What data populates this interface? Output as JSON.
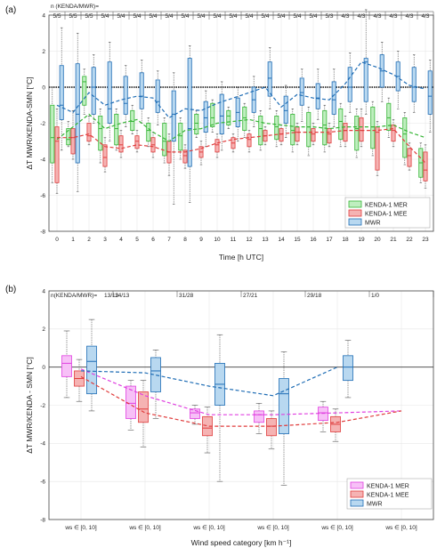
{
  "chart_data": [
    {
      "type": "box",
      "panel_label": "(a)",
      "xlabel": "Time [h UTC]",
      "ylabel": "ΔT MWR/KENDA-SMN [°C]",
      "ylim": [
        -8,
        4
      ],
      "yticks": [
        -8,
        -6,
        -4,
        -2,
        0,
        2,
        4
      ],
      "grid": true,
      "legend_position": "lower-right",
      "n_header_label": "n (KENDA/MWR)=",
      "categories": [
        "0",
        "1",
        "2",
        "3",
        "4",
        "5",
        "6",
        "7",
        "8",
        "9",
        "10",
        "11",
        "12",
        "13",
        "14",
        "15",
        "16",
        "17",
        "18",
        "19",
        "20",
        "21",
        "22",
        "23"
      ],
      "n_counts": [
        "5/5",
        "5/5",
        "5/5",
        "5/4",
        "5/4",
        "5/4",
        "5/4",
        "5/4",
        "5/4",
        "5/4",
        "5/4",
        "5/4",
        "5/4",
        "5/4",
        "5/4",
        "5/4",
        "5/4",
        "5/3",
        "4/3",
        "4/3",
        "4/3",
        "4/3",
        "4/3",
        "4/3"
      ],
      "series": [
        {
          "name": "KENDA-1 MER",
          "color": "#35b535",
          "fill": "#bfeebf",
          "median": [
            -2.8,
            -2.9,
            0.3,
            -2.3,
            -2.3,
            -1.9,
            -2.4,
            -3.0,
            -2.7,
            -2.0,
            -1.7,
            -1.6,
            -1.7,
            -2.3,
            -2.2,
            -2.4,
            -2.2,
            -2.1,
            -1.9,
            -2.3,
            -2.2,
            -1.7,
            -2.6,
            -4.2
          ],
          "q1": [
            -4.2,
            -3.2,
            -1.0,
            -3.5,
            -3.2,
            -2.4,
            -3.0,
            -3.8,
            -3.5,
            -2.6,
            -2.2,
            -2.1,
            -2.4,
            -3.2,
            -2.9,
            -3.2,
            -3.3,
            -3.2,
            -2.9,
            -3.5,
            -3.4,
            -2.4,
            -3.9,
            -5.0
          ],
          "q3": [
            -1.0,
            -2.3,
            0.6,
            -1.6,
            -1.5,
            -1.3,
            -2.0,
            -2.0,
            -2.0,
            -1.5,
            -0.9,
            -1.3,
            -1.1,
            -1.6,
            -1.6,
            -1.5,
            -1.4,
            -1.3,
            -1.2,
            -1.6,
            -1.1,
            -0.9,
            -1.7,
            -3.4
          ],
          "whislo": [
            -5.3,
            -3.3,
            -1.5,
            -4.2,
            -3.5,
            -2.6,
            -3.3,
            -4.2,
            -4.0,
            -2.8,
            -2.5,
            -2.3,
            -2.8,
            -3.5,
            -3.3,
            -3.6,
            -3.8,
            -3.6,
            -3.3,
            -3.9,
            -3.8,
            -2.8,
            -4.3,
            -5.3
          ],
          "whishi": [
            0.0,
            -1.9,
            1.0,
            -1.2,
            -1.2,
            -1.0,
            -1.7,
            -1.7,
            -1.7,
            -1.3,
            -0.7,
            -1.1,
            -0.9,
            -1.3,
            -1.3,
            -1.2,
            -1.1,
            -1.0,
            -0.9,
            -1.2,
            -0.8,
            -0.6,
            -1.4,
            -3.1
          ]
        },
        {
          "name": "KENDA-1 MEE",
          "color": "#e03c3c",
          "fill": "#f5b3b3",
          "median": [
            -3.0,
            -2.8,
            -2.7,
            -3.9,
            -3.2,
            -3.0,
            -3.2,
            -3.6,
            -3.8,
            -3.6,
            -3.2,
            -3.1,
            -2.9,
            -2.7,
            -2.6,
            -2.5,
            -2.6,
            -2.6,
            -2.4,
            -2.4,
            -2.5,
            -2.4,
            -3.8,
            -4.6
          ],
          "q1": [
            -5.3,
            -3.7,
            -3.0,
            -4.4,
            -3.6,
            -3.4,
            -3.6,
            -4.2,
            -4.2,
            -3.9,
            -3.6,
            -3.4,
            -3.3,
            -3.0,
            -3.0,
            -3.0,
            -3.0,
            -3.1,
            -3.0,
            -3.0,
            -4.6,
            -3.0,
            -4.4,
            -5.2
          ],
          "q3": [
            -2.2,
            -2.3,
            -2.0,
            -3.2,
            -2.7,
            -2.7,
            -2.8,
            -3.0,
            -3.5,
            -3.3,
            -2.9,
            -2.8,
            -2.6,
            -2.4,
            -2.3,
            -2.2,
            -2.3,
            -2.3,
            -2.0,
            -1.7,
            -2.2,
            -2.1,
            -3.4,
            -3.6
          ],
          "whislo": [
            -5.9,
            -4.0,
            -3.2,
            -4.7,
            -3.9,
            -3.6,
            -3.9,
            -4.9,
            -4.5,
            -4.3,
            -3.9,
            -3.6,
            -3.6,
            -3.2,
            -3.2,
            -3.2,
            -3.2,
            -3.3,
            -3.3,
            -3.3,
            -4.9,
            -3.3,
            -4.6,
            -5.6
          ],
          "whishi": [
            -1.2,
            -1.3,
            -1.6,
            -2.8,
            -2.4,
            -2.4,
            -2.5,
            -2.6,
            -3.2,
            -3.0,
            -2.6,
            -2.6,
            -2.4,
            -2.2,
            -2.1,
            -2.0,
            -2.0,
            -2.0,
            -1.6,
            -1.2,
            -1.9,
            -1.8,
            -3.1,
            -3.2
          ]
        },
        {
          "name": "MWR",
          "color": "#1f6db5",
          "fill": "#b8d8f0",
          "median": [
            -1.0,
            -1.5,
            0.0,
            -1.2,
            -0.9,
            -0.5,
            -0.8,
            -1.5,
            -2.3,
            -1.7,
            -1.6,
            -1.4,
            -0.7,
            0.5,
            -1.3,
            -0.3,
            -0.6,
            -0.7,
            0.0,
            1.4,
            0.9,
            0.6,
            0.0,
            -0.5
          ],
          "q1": [
            -1.8,
            -4.2,
            -1.5,
            -2.0,
            -1.5,
            -1.2,
            -1.4,
            -3.0,
            -4.4,
            -2.5,
            -2.6,
            -2.2,
            -1.4,
            -0.5,
            -2.0,
            -1.0,
            -1.2,
            -1.5,
            -0.8,
            -0.8,
            0.0,
            -0.2,
            -0.8,
            -1.5
          ],
          "q3": [
            1.2,
            1.3,
            1.1,
            1.4,
            0.6,
            0.8,
            0.4,
            -0.2,
            1.6,
            -0.8,
            -0.4,
            -0.6,
            0.0,
            1.4,
            -0.5,
            0.5,
            0.2,
            0.3,
            1.1,
            1.6,
            1.8,
            1.4,
            1.1,
            0.9
          ],
          "whislo": [
            -3.5,
            -5.8,
            -2.0,
            -3.0,
            -2.2,
            -2.0,
            -2.1,
            -6.5,
            -6.4,
            -3.3,
            -3.5,
            -3.0,
            -2.2,
            -1.2,
            -2.8,
            -1.9,
            -1.8,
            -2.2,
            -1.4,
            -1.5,
            -0.8,
            -1.2,
            -1.4,
            -2.5
          ],
          "whishi": [
            3.3,
            3.0,
            1.8,
            2.5,
            1.2,
            1.5,
            0.9,
            0.8,
            2.3,
            -0.2,
            0.3,
            0.0,
            0.6,
            2.2,
            0.1,
            1.0,
            1.0,
            1.0,
            1.9,
            4.3,
            2.5,
            2.0,
            1.8,
            1.5
          ]
        }
      ],
      "mean_lines": [
        {
          "name": "KENDA-1 MER",
          "color": "#35b535",
          "values": [
            -2.9,
            -2.2,
            -1.5,
            -2.3,
            -2.0,
            -1.8,
            -2.5,
            -3.0,
            -2.4,
            -2.3,
            -2.0,
            -1.9,
            -1.8,
            -2.0,
            -2.1,
            -2.2,
            -2.2,
            -2.3,
            -2.2,
            -2.2,
            -2.2,
            -2.1,
            -2.5,
            -2.8
          ]
        },
        {
          "name": "KENDA-1 MEE",
          "color": "#e03c3c",
          "values": [
            -2.8,
            -2.8,
            -2.6,
            -3.3,
            -3.4,
            -3.2,
            -3.3,
            -3.6,
            -3.6,
            -3.4,
            -3.1,
            -2.9,
            -2.8,
            -2.7,
            -2.6,
            -2.5,
            -2.5,
            -2.5,
            -2.4,
            -2.4,
            -2.4,
            -2.3,
            -3.3,
            -4.2
          ]
        },
        {
          "name": "MWR",
          "color": "#1f6db5",
          "values": [
            -1.0,
            -1.4,
            -0.3,
            -1.0,
            -0.7,
            -0.5,
            -0.6,
            -1.7,
            -1.2,
            -1.3,
            -0.9,
            -0.6,
            -0.3,
            0.0,
            -1.1,
            -0.4,
            -0.6,
            -0.7,
            0.2,
            1.4,
            1.1,
            0.7,
            0.1,
            -0.1
          ]
        }
      ],
      "reference_line": 0
    },
    {
      "type": "box",
      "panel_label": "(b)",
      "xlabel": "Wind speed category [km h⁻¹]",
      "ylabel": "ΔT MWR/KENDA - SMN [°C]",
      "ylim": [
        -8,
        4
      ],
      "yticks": [
        -8,
        -6,
        -4,
        -2,
        0,
        2,
        4
      ],
      "grid": true,
      "legend_position": "lower-right",
      "n_header_label": "n(KENDA/MWR)=",
      "categories": [
        "ws ∈ [0, 10]",
        "ws ∈ [0, 10]",
        "ws ∈ [0, 10]",
        "ws ∈ [0, 10]",
        "ws ∈ [0, 10]",
        "ws ∈ [0, 10]"
      ],
      "n_counts": [
        "13/13",
        "14/13",
        "31/28",
        "27/21",
        "29/18",
        "1/0"
      ],
      "series": [
        {
          "name": "KENDA-1 MER",
          "color": "#e040e0",
          "fill": "#f7c0f7",
          "median": [
            0.2,
            -1.9,
            -2.4,
            -2.5,
            -2.4,
            null
          ],
          "q1": [
            -0.5,
            -2.7,
            -2.7,
            -2.9,
            -2.8,
            null
          ],
          "q3": [
            0.6,
            -1.0,
            -2.2,
            -2.3,
            -2.1,
            null
          ],
          "whislo": [
            -1.6,
            -3.3,
            -3.0,
            -3.5,
            -3.4,
            null
          ],
          "whishi": [
            1.9,
            -0.7,
            -2.0,
            -1.9,
            -1.8,
            null
          ]
        },
        {
          "name": "KENDA-1 MEE",
          "color": "#e03c3c",
          "fill": "#f5b3b3",
          "median": [
            -0.6,
            -2.2,
            -3.2,
            -3.1,
            -3.0,
            null
          ],
          "q1": [
            -1.0,
            -2.9,
            -3.6,
            -3.6,
            -3.4,
            null
          ],
          "q3": [
            -0.2,
            -1.3,
            -2.6,
            -2.7,
            -2.6,
            null
          ],
          "whislo": [
            -1.8,
            -4.2,
            -4.5,
            -4.3,
            -3.9,
            null
          ],
          "whishi": [
            0.4,
            -0.7,
            -2.1,
            -2.3,
            -2.2,
            null
          ]
        },
        {
          "name": "MWR",
          "color": "#1f6db5",
          "fill": "#b8d8f0",
          "median": [
            0.3,
            -0.2,
            -0.9,
            -1.4,
            0.0,
            null
          ],
          "q1": [
            -1.4,
            -1.3,
            -2.0,
            -3.5,
            -0.7,
            null
          ],
          "q3": [
            1.1,
            0.5,
            0.2,
            -0.6,
            0.6,
            null
          ],
          "whislo": [
            -2.3,
            -2.7,
            -6.0,
            -6.2,
            -1.6,
            null
          ],
          "whishi": [
            2.5,
            0.9,
            1.7,
            0.8,
            1.4,
            null
          ]
        }
      ],
      "mean_lines": [
        {
          "name": "KENDA-1 MER",
          "color": "#e040e0",
          "values": [
            -0.1,
            -1.5,
            -2.5,
            -2.5,
            -2.4,
            -2.3
          ]
        },
        {
          "name": "KENDA-1 MEE",
          "color": "#e03c3c",
          "values": [
            -0.5,
            -2.4,
            -3.1,
            -3.1,
            -2.9,
            -2.3
          ]
        },
        {
          "name": "MWR",
          "color": "#1f6db5",
          "values": [
            -0.2,
            -0.3,
            -1.0,
            -1.5,
            0.0,
            null
          ]
        }
      ],
      "reference_line": 0
    }
  ]
}
